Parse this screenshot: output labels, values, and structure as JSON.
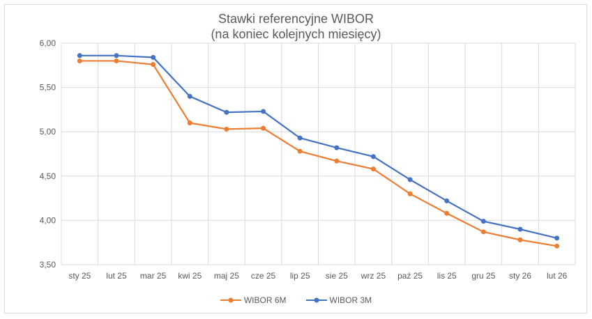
{
  "chart_data": {
    "type": "line",
    "title": "Stawki referencyjne WIBOR",
    "subtitle": "(na koniec kolejnych miesięcy)",
    "categories": [
      "sty 25",
      "lut 25",
      "mar 25",
      "kwi 25",
      "maj 25",
      "cze 25",
      "lip 25",
      "sie 25",
      "wrz 25",
      "paź 25",
      "lis 25",
      "gru 25",
      "sty 26",
      "lut 26"
    ],
    "ylim": [
      3.5,
      6.0
    ],
    "yticks": [
      "3,50",
      "4,00",
      "4,50",
      "5,00",
      "5,50",
      "6,00"
    ],
    "grid": true,
    "legend_position": "bottom",
    "series": [
      {
        "name": "WIBOR 6M",
        "color": "#ed7d31",
        "values": [
          5.8,
          5.8,
          5.76,
          5.1,
          5.03,
          5.04,
          4.78,
          4.67,
          4.58,
          4.3,
          4.08,
          3.87,
          3.78,
          3.71
        ]
      },
      {
        "name": "WIBOR 3M",
        "color": "#4472c4",
        "values": [
          5.86,
          5.86,
          5.84,
          5.4,
          5.22,
          5.23,
          4.93,
          4.82,
          4.72,
          4.46,
          4.22,
          3.99,
          3.9,
          3.8
        ]
      }
    ]
  }
}
